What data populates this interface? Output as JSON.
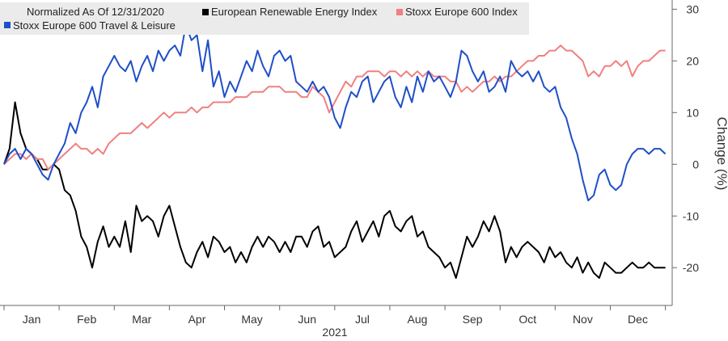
{
  "chart_data": {
    "type": "line",
    "legend_header": "Normalized As Of 12/31/2020",
    "legend_placement": "top-left",
    "ylabel": "Change (%)",
    "xlabel": "2021",
    "x_axis_labels": [
      "Jan",
      "Feb",
      "Mar",
      "Apr",
      "May",
      "Jun",
      "Jul",
      "Aug",
      "Sep",
      "Oct",
      "Nov",
      "Dec"
    ],
    "y_ticks": [
      30,
      20,
      10,
      0,
      -10,
      -20
    ],
    "ylim": [
      -27,
      31
    ],
    "xlim": [
      0,
      12.05
    ],
    "grid": false,
    "series": [
      {
        "name": "European Renewable Energy Index",
        "color": "#000000",
        "x": [
          0.0,
          0.1,
          0.2,
          0.3,
          0.4,
          0.5,
          0.6,
          0.7,
          0.8,
          0.9,
          1.0,
          1.1,
          1.2,
          1.3,
          1.4,
          1.5,
          1.6,
          1.7,
          1.8,
          1.9,
          2.0,
          2.1,
          2.2,
          2.3,
          2.4,
          2.5,
          2.6,
          2.7,
          2.8,
          2.9,
          3.0,
          3.1,
          3.2,
          3.3,
          3.4,
          3.5,
          3.6,
          3.7,
          3.8,
          3.9,
          4.0,
          4.1,
          4.2,
          4.3,
          4.4,
          4.5,
          4.6,
          4.7,
          4.8,
          4.9,
          5.0,
          5.1,
          5.2,
          5.3,
          5.4,
          5.5,
          5.6,
          5.7,
          5.8,
          5.9,
          6.0,
          6.1,
          6.2,
          6.3,
          6.4,
          6.5,
          6.6,
          6.7,
          6.8,
          6.9,
          7.0,
          7.1,
          7.2,
          7.3,
          7.4,
          7.5,
          7.6,
          7.7,
          7.8,
          7.9,
          8.0,
          8.1,
          8.2,
          8.3,
          8.4,
          8.5,
          8.6,
          8.7,
          8.8,
          8.9,
          9.0,
          9.1,
          9.2,
          9.3,
          9.4,
          9.5,
          9.6,
          9.7,
          9.8,
          9.9,
          10.0,
          10.1,
          10.2,
          10.3,
          10.4,
          10.5,
          10.6,
          10.7,
          10.8,
          10.9,
          11.0,
          11.1,
          11.2,
          11.3,
          11.4,
          11.5,
          11.6,
          11.7,
          11.8,
          11.9,
          12.0
        ],
        "values": [
          0,
          3,
          12,
          6,
          3,
          2,
          1,
          -1,
          -1,
          0,
          -1,
          -5,
          -6,
          -9,
          -14,
          -16,
          -20,
          -15,
          -12,
          -16,
          -14,
          -16,
          -11,
          -17,
          -8,
          -11,
          -10,
          -11,
          -14,
          -10,
          -8,
          -12,
          -16,
          -19,
          -20,
          -17,
          -15,
          -18,
          -14,
          -15,
          -17,
          -16,
          -19,
          -17,
          -19,
          -16,
          -14,
          -16,
          -14,
          -15,
          -17,
          -15,
          -17,
          -14,
          -14,
          -16,
          -13,
          -12,
          -16,
          -15,
          -18,
          -17,
          -16,
          -13,
          -11,
          -15,
          -13,
          -11,
          -14,
          -10,
          -9,
          -12,
          -13,
          -11,
          -10,
          -14,
          -13,
          -16,
          -17,
          -18,
          -20,
          -19,
          -22,
          -18,
          -14,
          -16,
          -14,
          -11,
          -13,
          -10,
          -13,
          -19,
          -16,
          -18,
          -16,
          -15,
          -16,
          -17,
          -19,
          -16,
          -18,
          -17,
          -19,
          -20,
          -18,
          -21,
          -19,
          -21,
          -22,
          -19,
          -20,
          -21,
          -21,
          -20,
          -19,
          -20,
          -20,
          -19,
          -20,
          -20,
          -20
        ]
      },
      {
        "name": "Stoxx Europe 600 Index",
        "color": "#f08080",
        "x": [
          0.0,
          0.1,
          0.2,
          0.3,
          0.4,
          0.5,
          0.6,
          0.7,
          0.8,
          0.9,
          1.0,
          1.1,
          1.2,
          1.3,
          1.4,
          1.5,
          1.6,
          1.7,
          1.8,
          1.9,
          2.0,
          2.1,
          2.2,
          2.3,
          2.4,
          2.5,
          2.6,
          2.7,
          2.8,
          2.9,
          3.0,
          3.1,
          3.2,
          3.3,
          3.4,
          3.5,
          3.6,
          3.7,
          3.8,
          3.9,
          4.0,
          4.1,
          4.2,
          4.3,
          4.4,
          4.5,
          4.6,
          4.7,
          4.8,
          4.9,
          5.0,
          5.1,
          5.2,
          5.3,
          5.4,
          5.5,
          5.6,
          5.7,
          5.8,
          5.9,
          6.0,
          6.1,
          6.2,
          6.3,
          6.4,
          6.5,
          6.6,
          6.7,
          6.8,
          6.9,
          7.0,
          7.1,
          7.2,
          7.3,
          7.4,
          7.5,
          7.6,
          7.7,
          7.8,
          7.9,
          8.0,
          8.1,
          8.2,
          8.3,
          8.4,
          8.5,
          8.6,
          8.7,
          8.8,
          8.9,
          9.0,
          9.1,
          9.2,
          9.3,
          9.4,
          9.5,
          9.6,
          9.7,
          9.8,
          9.9,
          10.0,
          10.1,
          10.2,
          10.3,
          10.4,
          10.5,
          10.6,
          10.7,
          10.8,
          10.9,
          11.0,
          11.1,
          11.2,
          11.3,
          11.4,
          11.5,
          11.6,
          11.7,
          11.8,
          11.9,
          12.0
        ],
        "values": [
          0,
          1,
          2,
          2,
          1,
          2,
          1,
          1,
          -1,
          0,
          1,
          2,
          3,
          4,
          3,
          3,
          2,
          3,
          2,
          4,
          5,
          6,
          6,
          6,
          7,
          8,
          7,
          8,
          9,
          10,
          9,
          10,
          10,
          10,
          11,
          10,
          11,
          11,
          12,
          12,
          12,
          12,
          13,
          13,
          13,
          14,
          14,
          14,
          15,
          15,
          15,
          14,
          14,
          14,
          13,
          13,
          15,
          14,
          13,
          10,
          12,
          14,
          16,
          15,
          17,
          17,
          18,
          18,
          18,
          17,
          18,
          18,
          17,
          18,
          17,
          18,
          17,
          18,
          17,
          17,
          17,
          16,
          16,
          14,
          15,
          14,
          15,
          16,
          16,
          17,
          16,
          17,
          17,
          18,
          19,
          20,
          20,
          21,
          21,
          22,
          22,
          23,
          22,
          22,
          21,
          20,
          17,
          18,
          17,
          19,
          19,
          20,
          19,
          20,
          17,
          19,
          20,
          20,
          21,
          22,
          22
        ]
      },
      {
        "name": "Stoxx Europe 600 Travel & Leisure",
        "color": "#1f4fc8",
        "x": [
          0.0,
          0.1,
          0.2,
          0.3,
          0.4,
          0.5,
          0.6,
          0.7,
          0.8,
          0.9,
          1.0,
          1.1,
          1.2,
          1.3,
          1.4,
          1.5,
          1.6,
          1.7,
          1.8,
          1.9,
          2.0,
          2.1,
          2.2,
          2.3,
          2.4,
          2.5,
          2.6,
          2.7,
          2.8,
          2.9,
          3.0,
          3.1,
          3.2,
          3.3,
          3.4,
          3.5,
          3.6,
          3.7,
          3.8,
          3.9,
          4.0,
          4.1,
          4.2,
          4.3,
          4.4,
          4.5,
          4.6,
          4.7,
          4.8,
          4.9,
          5.0,
          5.1,
          5.2,
          5.3,
          5.4,
          5.5,
          5.6,
          5.7,
          5.8,
          5.9,
          6.0,
          6.1,
          6.2,
          6.3,
          6.4,
          6.5,
          6.6,
          6.7,
          6.8,
          6.9,
          7.0,
          7.1,
          7.2,
          7.3,
          7.4,
          7.5,
          7.6,
          7.7,
          7.8,
          7.9,
          8.0,
          8.1,
          8.2,
          8.3,
          8.4,
          8.5,
          8.6,
          8.7,
          8.8,
          8.9,
          9.0,
          9.1,
          9.2,
          9.3,
          9.4,
          9.5,
          9.6,
          9.7,
          9.8,
          9.9,
          10.0,
          10.1,
          10.2,
          10.3,
          10.4,
          10.5,
          10.6,
          10.7,
          10.8,
          10.9,
          11.0,
          11.1,
          11.2,
          11.3,
          11.4,
          11.5,
          11.6,
          11.7,
          11.8,
          11.9,
          12.0
        ],
        "values": [
          0,
          2,
          3,
          1,
          3,
          2,
          0,
          -2,
          -3,
          0,
          2,
          4,
          8,
          6,
          10,
          12,
          15,
          11,
          17,
          19,
          21,
          19,
          18,
          20,
          16,
          19,
          21,
          18,
          22,
          20,
          22,
          23,
          21,
          27,
          24,
          25,
          18,
          24,
          15,
          18,
          13,
          16,
          14,
          17,
          20,
          18,
          22,
          19,
          17,
          21,
          22,
          20,
          21,
          16,
          15,
          14,
          16,
          14,
          15,
          13,
          9,
          7,
          11,
          14,
          13,
          16,
          17,
          12,
          14,
          16,
          17,
          13,
          11,
          15,
          12,
          17,
          14,
          18,
          16,
          17,
          15,
          13,
          16,
          22,
          21,
          18,
          16,
          18,
          14,
          15,
          17,
          14,
          20,
          18,
          17,
          18,
          16,
          18,
          15,
          14,
          15,
          11,
          9,
          5,
          2,
          -3,
          -7,
          -6,
          -2,
          -1,
          -4,
          -5,
          -4,
          0,
          2,
          3,
          3,
          2,
          3,
          3,
          2
        ]
      }
    ]
  }
}
